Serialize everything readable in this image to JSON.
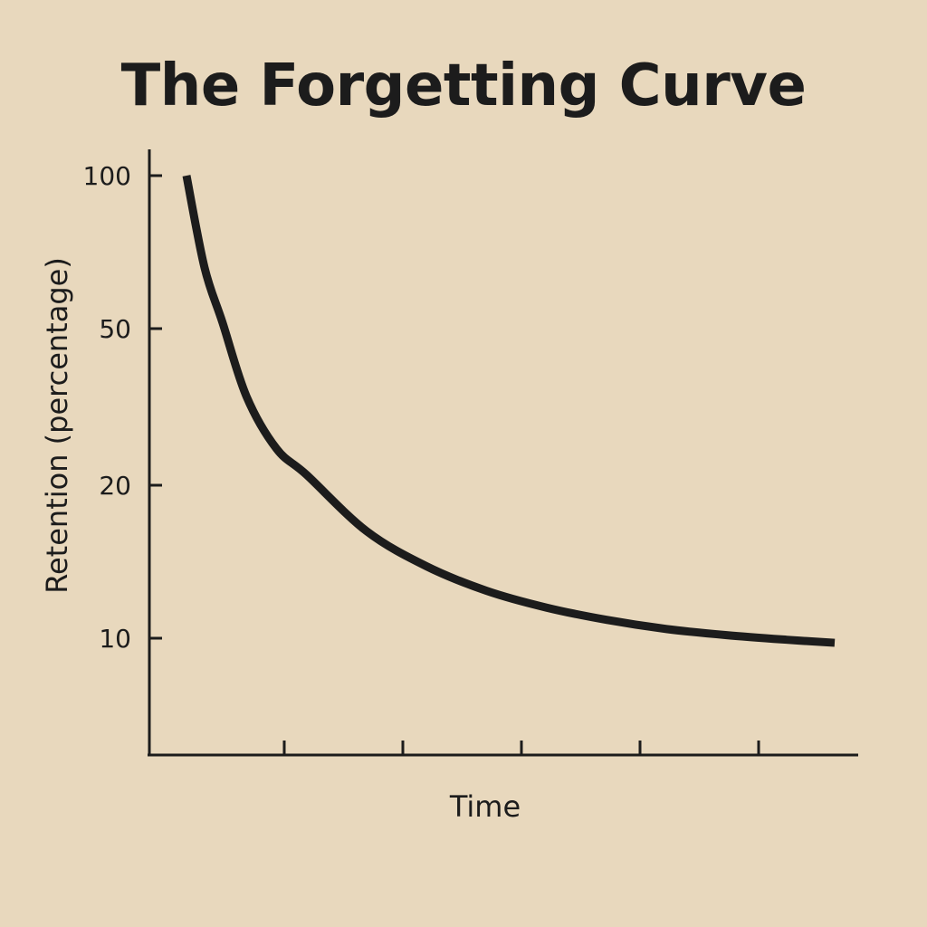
{
  "chart_data": {
    "type": "line",
    "title": "The Forgetting Curve",
    "xlabel": "Time",
    "ylabel": "Retention (percentage)",
    "y_tick_labels": [
      "100",
      "50",
      "20",
      "10"
    ],
    "x_ticks": 5,
    "series": [
      {
        "color": "#1c1c1c",
        "x": [
          0,
          0.15,
          0.3,
          0.5,
          0.75,
          1,
          1.5,
          2,
          2.5,
          3,
          3.5,
          4,
          4.5,
          5,
          5.4
        ],
        "y": [
          100,
          70,
          52,
          37,
          27,
          22,
          17,
          14.7,
          13.1,
          12,
          11.2,
          10.6,
          10.2,
          9.9,
          9.7
        ]
      }
    ],
    "grid": false,
    "legend": "none"
  }
}
